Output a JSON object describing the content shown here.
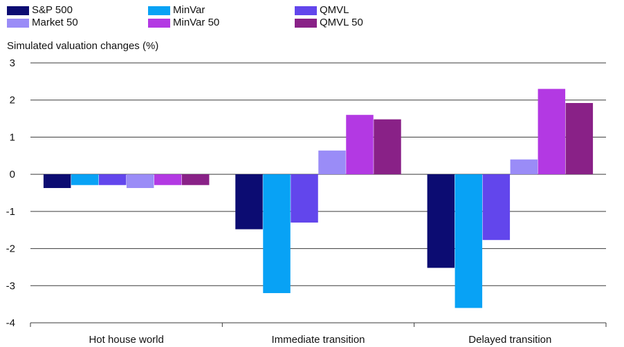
{
  "chart_data": {
    "type": "bar",
    "title": "",
    "xlabel": "",
    "ylabel": "Simulated valuation changes (%)",
    "ylim": [
      -4,
      3
    ],
    "yticks": [
      3,
      2,
      1,
      0,
      -1,
      -2,
      -3,
      -4
    ],
    "grid": true,
    "legend_position": "top-left",
    "categories": [
      "Hot house world",
      "Immediate transition",
      "Delayed transition"
    ],
    "series": [
      {
        "name": "S&P 500",
        "color": "#0c0c72",
        "values": [
          -0.37,
          -1.48,
          -2.52
        ]
      },
      {
        "name": "MinVar",
        "color": "#08a2f5",
        "values": [
          -0.29,
          -3.2,
          -3.6
        ]
      },
      {
        "name": "QMVL",
        "color": "#6246ec",
        "values": [
          -0.29,
          -1.3,
          -1.77
        ]
      },
      {
        "name": "Market 50",
        "color": "#9a8cf7",
        "values": [
          -0.37,
          0.64,
          0.4
        ]
      },
      {
        "name": "MinVar 50",
        "color": "#b339e3",
        "values": [
          -0.29,
          1.6,
          2.3
        ]
      },
      {
        "name": "QMVL 50",
        "color": "#892187",
        "values": [
          -0.29,
          1.48,
          1.92
        ]
      }
    ]
  }
}
